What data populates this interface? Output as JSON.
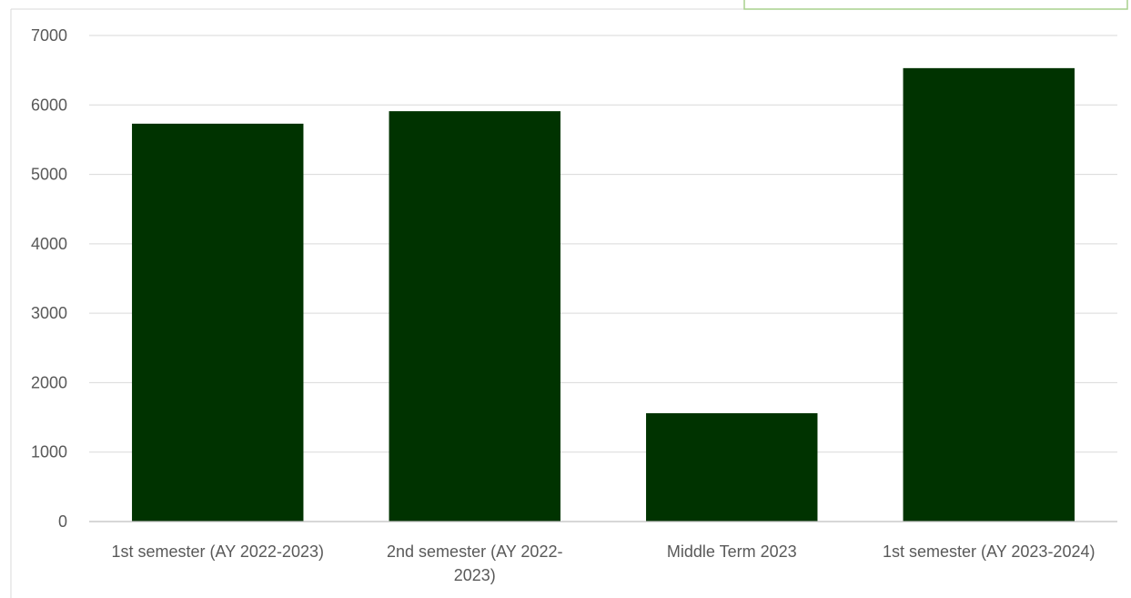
{
  "chart_data": {
    "type": "bar",
    "categories": [
      "1st semester (AY 2022-2023)",
      "2nd semester (AY 2022-2023)",
      "Middle Term 2023",
      "1st semester (AY 2023-2024)"
    ],
    "category_label_lines": [
      [
        "1st semester (AY 2022-2023)"
      ],
      [
        "2nd semester (AY 2022-",
        "2023)"
      ],
      [
        "Middle Term 2023"
      ],
      [
        "1st semester (AY 2023-2024)"
      ]
    ],
    "values": [
      5730,
      5910,
      1560,
      6530
    ],
    "title": "",
    "xlabel": "",
    "ylabel": "",
    "ylim": [
      0,
      7000
    ],
    "yticks": [
      "0",
      "1000",
      "2000",
      "3000",
      "4000",
      "5000",
      "6000",
      "7000"
    ],
    "grid": true,
    "legend": "none",
    "bar_color": "#003300",
    "grid_color": "#d9d9d9",
    "axis_color": "#bfbfbf",
    "tick_label_color": "#595959",
    "frame_border_color": "#a9d18e"
  }
}
